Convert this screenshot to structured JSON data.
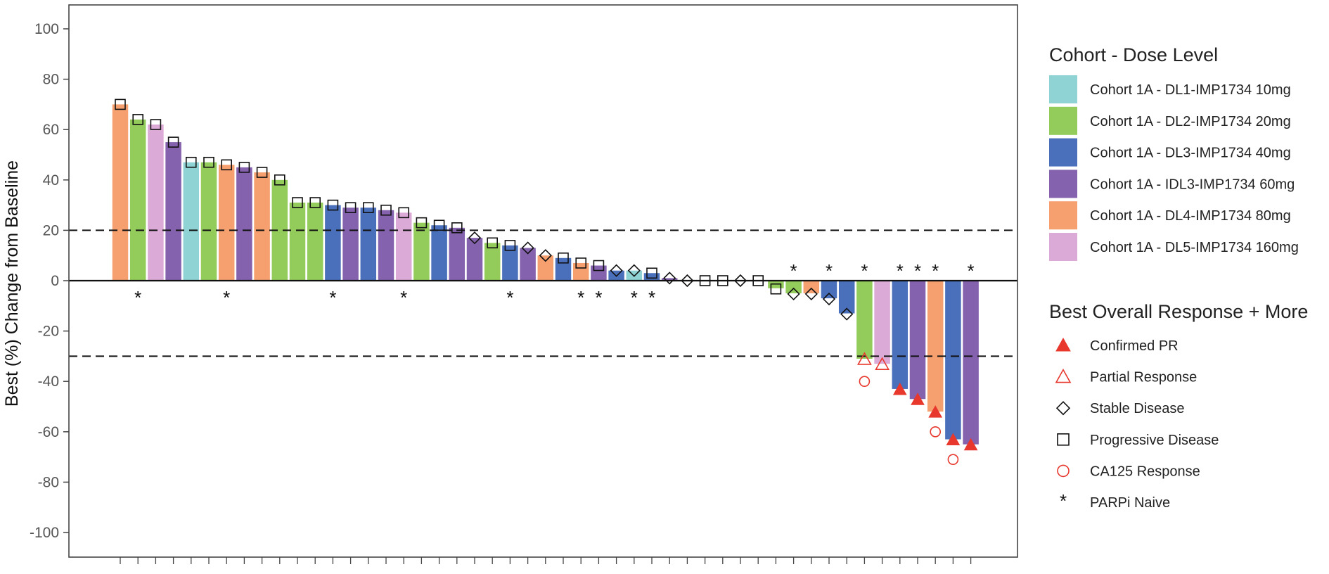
{
  "chart_data": {
    "type": "bar",
    "title": "",
    "ylabel": "Best (%) Change from Baseline",
    "xlabel": "",
    "ylim": [
      -110,
      110
    ],
    "yticks": [
      100,
      80,
      60,
      40,
      20,
      0,
      -20,
      -40,
      -60,
      -80,
      -100
    ],
    "reference_lines": [
      20,
      -30
    ],
    "grid": false,
    "legend_position": "right",
    "cohort_legend": {
      "title": "Cohort - Dose Level",
      "items": [
        {
          "key": "DL1",
          "label": "Cohort 1A - DL1-IMP1734 10mg",
          "color": "#8fd3d5"
        },
        {
          "key": "DL2",
          "label": "Cohort 1A - DL2-IMP1734 20mg",
          "color": "#93cc5a"
        },
        {
          "key": "DL3",
          "label": "Cohort 1A - DL3-IMP1734 40mg",
          "color": "#4a6fbb"
        },
        {
          "key": "IDL3",
          "label": "Cohort 1A - IDL3-IMP1734 60mg",
          "color": "#8562ae"
        },
        {
          "key": "DL4",
          "label": "Cohort 1A - DL4-IMP1734 80mg",
          "color": "#f5a06e"
        },
        {
          "key": "DL5",
          "label": "Cohort 1A - DL5-IMP1734 160mg",
          "color": "#dcaad6"
        }
      ]
    },
    "response_legend": {
      "title": "Best Overall Response + More",
      "items": [
        {
          "key": "CPR",
          "label": "Confirmed PR",
          "symbol": "filled-triangle",
          "color": "#e8382d"
        },
        {
          "key": "PR",
          "label": "Partial Response",
          "symbol": "open-triangle",
          "color": "#e8382d"
        },
        {
          "key": "SD",
          "label": "Stable Disease",
          "symbol": "open-diamond",
          "color": "#111111"
        },
        {
          "key": "PD",
          "label": "Progressive Disease",
          "symbol": "open-square",
          "color": "#111111"
        },
        {
          "key": "CA125",
          "label": "CA125 Response",
          "symbol": "open-circle",
          "color": "#e8382d"
        },
        {
          "key": "PARPi",
          "label": "PARPi Naive",
          "symbol": "asterisk",
          "color": "#111111"
        }
      ]
    },
    "patients": [
      {
        "value": 70,
        "cohort": "DL4",
        "response": "PD",
        "parpi": false
      },
      {
        "value": 64,
        "cohort": "DL2",
        "response": "PD",
        "parpi": true
      },
      {
        "value": 62,
        "cohort": "DL5",
        "response": "PD",
        "parpi": false
      },
      {
        "value": 55,
        "cohort": "IDL3",
        "response": "PD",
        "parpi": false
      },
      {
        "value": 47,
        "cohort": "DL1",
        "response": "PD",
        "parpi": false
      },
      {
        "value": 47,
        "cohort": "DL2",
        "response": "PD",
        "parpi": false
      },
      {
        "value": 46,
        "cohort": "DL4",
        "response": "PD",
        "parpi": true
      },
      {
        "value": 45,
        "cohort": "IDL3",
        "response": "PD",
        "parpi": false
      },
      {
        "value": 43,
        "cohort": "DL4",
        "response": "PD",
        "parpi": false
      },
      {
        "value": 40,
        "cohort": "DL2",
        "response": "PD",
        "parpi": false
      },
      {
        "value": 31,
        "cohort": "DL2",
        "response": "PD",
        "parpi": false
      },
      {
        "value": 31,
        "cohort": "DL2",
        "response": "PD",
        "parpi": false
      },
      {
        "value": 30,
        "cohort": "DL3",
        "response": "PD",
        "parpi": true
      },
      {
        "value": 29,
        "cohort": "IDL3",
        "response": "PD",
        "parpi": false
      },
      {
        "value": 29,
        "cohort": "DL3",
        "response": "PD",
        "parpi": false
      },
      {
        "value": 28,
        "cohort": "IDL3",
        "response": "PD",
        "parpi": false
      },
      {
        "value": 27,
        "cohort": "DL5",
        "response": "PD",
        "parpi": true
      },
      {
        "value": 23,
        "cohort": "DL2",
        "response": "PD",
        "parpi": false
      },
      {
        "value": 22,
        "cohort": "DL3",
        "response": "PD",
        "parpi": false
      },
      {
        "value": 21,
        "cohort": "IDL3",
        "response": "PD",
        "parpi": false
      },
      {
        "value": 17,
        "cohort": "IDL3",
        "response": "SD",
        "parpi": false
      },
      {
        "value": 15,
        "cohort": "DL2",
        "response": "PD",
        "parpi": false
      },
      {
        "value": 14,
        "cohort": "DL3",
        "response": "PD",
        "parpi": true
      },
      {
        "value": 13,
        "cohort": "IDL3",
        "response": "SD",
        "parpi": false
      },
      {
        "value": 10,
        "cohort": "DL4",
        "response": "SD",
        "parpi": false
      },
      {
        "value": 9,
        "cohort": "DL3",
        "response": "PD",
        "parpi": false
      },
      {
        "value": 7,
        "cohort": "DL4",
        "response": "PD",
        "parpi": true
      },
      {
        "value": 6,
        "cohort": "IDL3",
        "response": "PD",
        "parpi": true
      },
      {
        "value": 4,
        "cohort": "DL3",
        "response": "SD",
        "parpi": false
      },
      {
        "value": 4,
        "cohort": "DL1",
        "response": "SD",
        "parpi": true
      },
      {
        "value": 3,
        "cohort": "DL3",
        "response": "PD",
        "parpi": true
      },
      {
        "value": 1,
        "cohort": "IDL3",
        "response": "SD",
        "parpi": false
      },
      {
        "value": 0,
        "cohort": "DL3",
        "response": "SD",
        "parpi": false
      },
      {
        "value": 0,
        "cohort": "DL3",
        "response": "PD",
        "parpi": false
      },
      {
        "value": 0,
        "cohort": "DL3",
        "response": "PD",
        "parpi": false
      },
      {
        "value": 0,
        "cohort": "DL3",
        "response": "SD",
        "parpi": false
      },
      {
        "value": 0,
        "cohort": "DL3",
        "response": "PD",
        "parpi": false
      },
      {
        "value": -3,
        "cohort": "DL2",
        "response": "PD",
        "parpi": false
      },
      {
        "value": -5,
        "cohort": "DL2",
        "response": "SD",
        "parpi": true
      },
      {
        "value": -5,
        "cohort": "DL4",
        "response": "SD",
        "parpi": false
      },
      {
        "value": -7,
        "cohort": "DL3",
        "response": "SD",
        "parpi": true
      },
      {
        "value": -13,
        "cohort": "DL3",
        "response": "SD",
        "parpi": false
      },
      {
        "value": -31,
        "cohort": "DL2",
        "response": "PR",
        "parpi": true,
        "ca125": -40
      },
      {
        "value": -33,
        "cohort": "DL5",
        "response": "PR",
        "parpi": false
      },
      {
        "value": -43,
        "cohort": "DL3",
        "response": "CPR",
        "parpi": true
      },
      {
        "value": -47,
        "cohort": "IDL3",
        "response": "CPR",
        "parpi": true
      },
      {
        "value": -52,
        "cohort": "DL4",
        "response": "CPR",
        "parpi": true,
        "ca125": -60
      },
      {
        "value": -63,
        "cohort": "DL3",
        "response": "CPR",
        "parpi": false,
        "ca125": -71
      },
      {
        "value": -65,
        "cohort": "IDL3",
        "response": "CPR",
        "parpi": true
      }
    ]
  }
}
